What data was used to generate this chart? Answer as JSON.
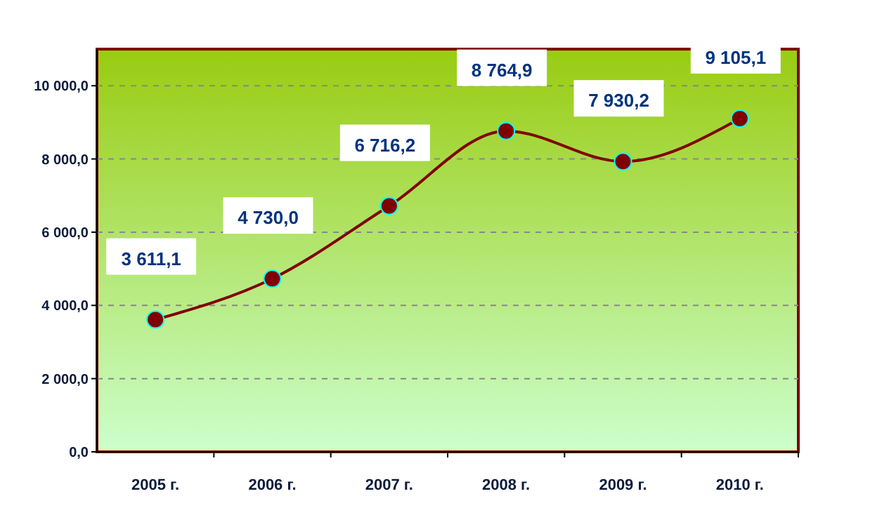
{
  "chart_data": {
    "type": "line",
    "categories": [
      "2005 г.",
      "2006 г.",
      "2007 г.",
      "2008 г.",
      "2009 г.",
      "2010 г."
    ],
    "series": [
      {
        "color": "#800000",
        "values": [
          3611.1,
          4730.0,
          6716.2,
          8764.9,
          7930.2,
          9105.1
        ],
        "value_labels": [
          "3 611,1",
          "4 730,0",
          "6 716,2",
          "8 764,9",
          "7 930,2",
          "9 105,1"
        ]
      }
    ],
    "ylim": [
      0,
      11000
    ],
    "yticks": [
      {
        "value": 0,
        "label": "0,0"
      },
      {
        "value": 2000,
        "label": "2 000,0"
      },
      {
        "value": 4000,
        "label": "4 000,0"
      },
      {
        "value": 6000,
        "label": "6 000,0"
      },
      {
        "value": 8000,
        "label": "8 000,0"
      },
      {
        "value": 10000,
        "label": "10 000,0"
      }
    ],
    "grid": "y",
    "marker": "circle",
    "line_style": "solid"
  }
}
